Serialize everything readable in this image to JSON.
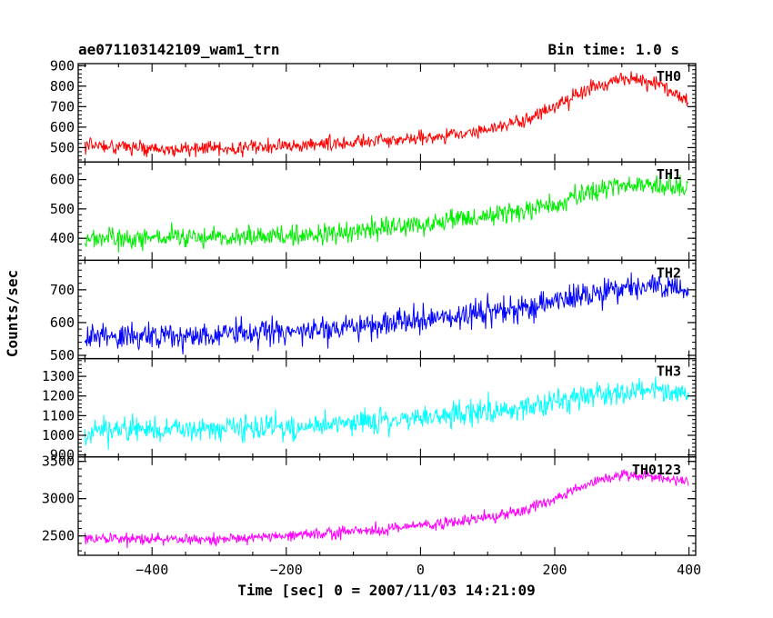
{
  "header": {
    "title": "ae071103142109_wam1_trn",
    "bin_time": "Bin time: 1.0 s"
  },
  "chart_data": {
    "type": "line",
    "xlabel": "Time [sec] 0 = 2007/11/03 14:21:09",
    "ylabel": "Counts/sec",
    "xlim": [
      -510,
      410
    ],
    "x_ticks": [
      -400,
      -200,
      0,
      200,
      400
    ],
    "x_tick_labels": [
      "−400",
      "−200",
      "0",
      "200",
      "400"
    ],
    "x_range": [
      -500,
      399
    ],
    "panels": [
      {
        "name": "TH0",
        "color": "#ff0000",
        "ylim": [
          430,
          910
        ],
        "y_ticks": [
          500,
          600,
          700,
          800,
          900
        ],
        "noise": 25,
        "trend": [
          [
            -500,
            515
          ],
          [
            -400,
            495
          ],
          [
            -300,
            495
          ],
          [
            -200,
            505
          ],
          [
            -100,
            525
          ],
          [
            0,
            550
          ],
          [
            50,
            570
          ],
          [
            100,
            590
          ],
          [
            150,
            625
          ],
          [
            200,
            700
          ],
          [
            250,
            790
          ],
          [
            300,
            840
          ],
          [
            350,
            820
          ],
          [
            380,
            770
          ],
          [
            399,
            730
          ]
        ]
      },
      {
        "name": "TH1",
        "color": "#00ee00",
        "ylim": [
          325,
          660
        ],
        "y_ticks": [
          400,
          500,
          600
        ],
        "noise": 25,
        "trend": [
          [
            -500,
            400
          ],
          [
            -400,
            400
          ],
          [
            -300,
            400
          ],
          [
            -200,
            410
          ],
          [
            -100,
            425
          ],
          [
            0,
            445
          ],
          [
            100,
            475
          ],
          [
            200,
            510
          ],
          [
            250,
            560
          ],
          [
            300,
            580
          ],
          [
            350,
            580
          ],
          [
            399,
            570
          ]
        ]
      },
      {
        "name": "TH2",
        "color": "#0000ff",
        "ylim": [
          490,
          790
        ],
        "y_ticks": [
          500,
          600,
          700
        ],
        "noise": 28,
        "trend": [
          [
            -500,
            555
          ],
          [
            -400,
            560
          ],
          [
            -300,
            565
          ],
          [
            -200,
            570
          ],
          [
            -100,
            585
          ],
          [
            0,
            605
          ],
          [
            100,
            630
          ],
          [
            200,
            660
          ],
          [
            250,
            685
          ],
          [
            300,
            705
          ],
          [
            350,
            710
          ],
          [
            399,
            705
          ]
        ]
      },
      {
        "name": "TH3",
        "color": "#00ffff",
        "ylim": [
          890,
          1390
        ],
        "y_ticks": [
          900,
          1000,
          1100,
          1200,
          1300
        ],
        "noise": 45,
        "trend": [
          [
            -500,
            1025
          ],
          [
            -400,
            1030
          ],
          [
            -300,
            1035
          ],
          [
            -200,
            1045
          ],
          [
            -100,
            1060
          ],
          [
            0,
            1085
          ],
          [
            100,
            1120
          ],
          [
            200,
            1165
          ],
          [
            250,
            1200
          ],
          [
            300,
            1220
          ],
          [
            350,
            1230
          ],
          [
            399,
            1215
          ]
        ]
      },
      {
        "name": "TH0123",
        "color": "#ff00ff",
        "ylim": [
          2240,
          3560
        ],
        "y_ticks": [
          2500,
          3000,
          3500
        ],
        "noise": 55,
        "trend": [
          [
            -500,
            2480
          ],
          [
            -400,
            2450
          ],
          [
            -300,
            2460
          ],
          [
            -200,
            2495
          ],
          [
            -100,
            2555
          ],
          [
            0,
            2630
          ],
          [
            100,
            2740
          ],
          [
            150,
            2840
          ],
          [
            200,
            3000
          ],
          [
            250,
            3200
          ],
          [
            300,
            3330
          ],
          [
            350,
            3300
          ],
          [
            399,
            3230
          ]
        ]
      }
    ]
  }
}
